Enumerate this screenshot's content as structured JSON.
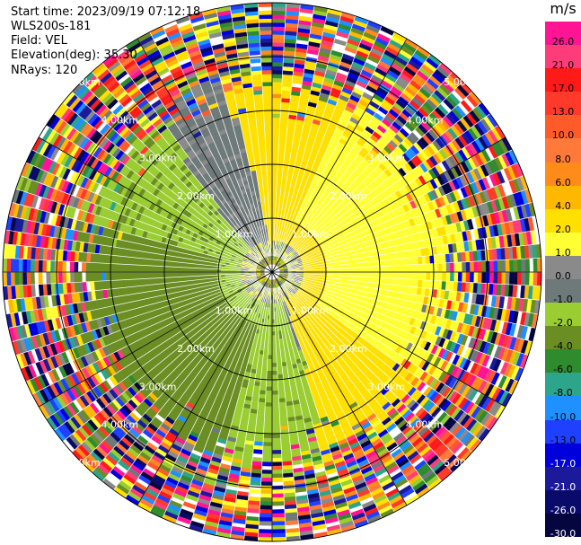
{
  "header": {
    "start_time": "Start time: 2023/09/19 07:12:18",
    "station": "WLS200s-181",
    "field": "Field: VEL",
    "elevation": "Elevation(deg): 35.30",
    "nrays": "NRays: 120"
  },
  "colorbar": {
    "unit": "m/s",
    "levels": [
      {
        "label": "26.0",
        "color": "#ff1493"
      },
      {
        "label": "21.0",
        "color": "#ff3c7a"
      },
      {
        "label": "17.0",
        "color": "#ff1a1a"
      },
      {
        "label": "13.0",
        "color": "#ff3a2a"
      },
      {
        "label": "10.0",
        "color": "#ff5a2a"
      },
      {
        "label": "8.0",
        "color": "#ff7a3a"
      },
      {
        "label": "6.0",
        "color": "#ff8c1a"
      },
      {
        "label": "4.0",
        "color": "#ffb800"
      },
      {
        "label": "2.0",
        "color": "#ffe000"
      },
      {
        "label": "1.0",
        "color": "#ffff33"
      },
      {
        "label": "0.0",
        "color": "#8a8a8a"
      },
      {
        "label": "-1.0",
        "color": "#6e7a7a"
      },
      {
        "label": "-2.0",
        "color": "#9acd32"
      },
      {
        "label": "-4.0",
        "color": "#6b8e23"
      },
      {
        "label": "-6.0",
        "color": "#2e8b2e"
      },
      {
        "label": "-8.0",
        "color": "#2ca58a"
      },
      {
        "label": "-10.0",
        "color": "#1e90ff"
      },
      {
        "label": "-13.0",
        "color": "#2040ff"
      },
      {
        "label": "-17.0",
        "color": "#0000dd"
      },
      {
        "label": "-21.0",
        "color": "#1a1a9a"
      },
      {
        "label": "-26.0",
        "color": "#0a0a6a"
      },
      {
        "label": "-30.0",
        "color": "#050540"
      }
    ]
  },
  "chart_data": {
    "type": "heatmap",
    "projection": "polar PPI",
    "field": "VEL",
    "units": "m/s",
    "n_rays": 120,
    "max_range_km": 5.0,
    "range_rings_km": [
      1.0,
      2.0,
      3.0,
      4.0,
      5.0
    ],
    "ring_labels": [
      "1.00km",
      "2.00km",
      "3.00km",
      "4.00km",
      "5.00km"
    ],
    "spoke_interval_deg": 30,
    "pattern": {
      "positive_sector_center_deg_cw_from_north": 75,
      "negative_sector_center_deg_cw_from_north": 240,
      "approx_speed_mps": 2.0,
      "noisy_beyond_km": 3.5
    }
  }
}
